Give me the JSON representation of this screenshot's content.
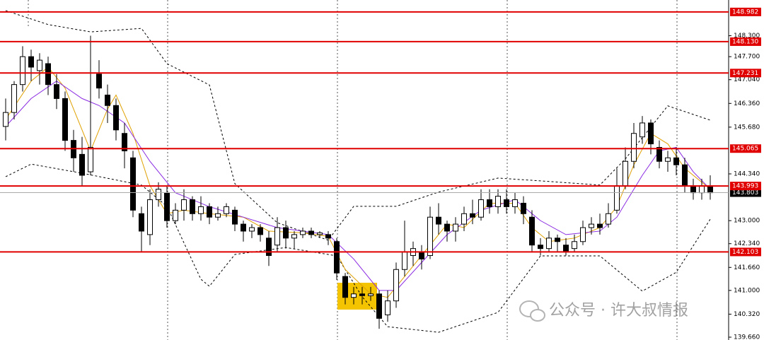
{
  "chart_data": {
    "type": "candlestick",
    "ylim": [
      139.579,
      149.324
    ],
    "yticks": [
      {
        "value": 139.66,
        "label": "139.660"
      },
      {
        "value": 140.32,
        "label": "140.320"
      },
      {
        "value": 141,
        "label": "141.000"
      },
      {
        "value": 141.66,
        "label": "141.660"
      },
      {
        "value": 142.34,
        "label": "142.340"
      },
      {
        "value": 143,
        "label": "143.000"
      },
      {
        "value": 144.34,
        "label": "144.340"
      },
      {
        "value": 145.68,
        "label": "145.680"
      },
      {
        "value": 146.36,
        "label": "146.360"
      },
      {
        "value": 147.04,
        "label": "147.040"
      },
      {
        "value": 147.7,
        "label": "147.700"
      },
      {
        "value": 148.3,
        "label": "148.300"
      }
    ],
    "levels": [
      148.982,
      {
        "value": 148.13,
        "label": "148.130"
      },
      147.231,
      145.065,
      143.993,
      142.103
    ],
    "level_color": "#e00000",
    "last_price": 143.803,
    "ohlc": [
      [
        145.7,
        146.5,
        145.3,
        146.1
      ],
      [
        146.1,
        147.0,
        145.9,
        146.9
      ],
      [
        146.9,
        148.0,
        146.7,
        147.7
      ],
      [
        147.7,
        147.9,
        147.0,
        147.4
      ],
      [
        147.3,
        147.8,
        146.9,
        147.6
      ],
      [
        147.5,
        147.7,
        146.6,
        146.9
      ],
      [
        146.9,
        147.2,
        146.2,
        146.5
      ],
      [
        146.5,
        146.7,
        145.0,
        145.3
      ],
      [
        145.3,
        145.6,
        144.4,
        144.8
      ],
      [
        144.9,
        145.4,
        144.0,
        144.3
      ],
      [
        144.4,
        148.3,
        144.3,
        145.1
      ],
      [
        147.2,
        147.6,
        146.5,
        146.8
      ],
      [
        146.6,
        146.9,
        145.8,
        146.3
      ],
      [
        146.3,
        146.5,
        145.3,
        145.6
      ],
      [
        145.5,
        145.8,
        144.5,
        145.0
      ],
      [
        144.8,
        145.0,
        143.1,
        143.3
      ],
      [
        143.2,
        143.4,
        142.1,
        142.7
      ],
      [
        142.6,
        143.9,
        142.3,
        143.6
      ],
      [
        143.6,
        144.1,
        143.4,
        143.9
      ],
      [
        143.8,
        144.0,
        142.8,
        143.0
      ],
      [
        143.0,
        143.5,
        142.9,
        143.3
      ],
      [
        143.3,
        143.9,
        143.0,
        143.6
      ],
      [
        143.6,
        143.7,
        143.0,
        143.2
      ],
      [
        143.2,
        143.7,
        143.0,
        143.4
      ],
      [
        143.4,
        143.5,
        142.9,
        143.1
      ],
      [
        143.1,
        143.4,
        143.0,
        143.2
      ],
      [
        143.2,
        143.5,
        143.1,
        143.4
      ],
      [
        143.3,
        143.4,
        142.7,
        142.9
      ],
      [
        142.9,
        143.0,
        142.4,
        142.7
      ],
      [
        142.7,
        142.9,
        142.5,
        142.8
      ],
      [
        142.8,
        142.9,
        142.4,
        142.6
      ],
      [
        142.5,
        142.7,
        141.7,
        142.0
      ],
      [
        142.3,
        143.1,
        142.1,
        142.8
      ],
      [
        142.8,
        143.0,
        142.2,
        142.5
      ],
      [
        142.5,
        142.7,
        142.2,
        142.6
      ],
      [
        142.6,
        142.8,
        142.5,
        142.7
      ],
      [
        142.7,
        142.8,
        142.5,
        142.6
      ],
      [
        142.6,
        142.7,
        142.5,
        142.65
      ],
      [
        142.6,
        142.7,
        142.3,
        142.5
      ],
      [
        142.4,
        142.5,
        141.3,
        141.5
      ],
      [
        141.4,
        141.5,
        140.6,
        140.8
      ],
      [
        140.8,
        141.1,
        140.6,
        140.9
      ],
      [
        140.9,
        141.1,
        140.6,
        140.85
      ],
      [
        140.85,
        141.1,
        140.7,
        140.9
      ],
      [
        140.9,
        141.0,
        139.9,
        140.2
      ],
      [
        140.3,
        141.0,
        140.1,
        140.7
      ],
      [
        140.7,
        141.8,
        140.5,
        141.6
      ],
      [
        141.6,
        143.0,
        141.4,
        142.1
      ],
      [
        142.0,
        142.4,
        141.7,
        142.2
      ],
      [
        142.1,
        142.3,
        141.6,
        141.9
      ],
      [
        142.0,
        143.4,
        141.9,
        143.1
      ],
      [
        143.1,
        143.5,
        142.6,
        142.9
      ],
      [
        142.9,
        143.0,
        142.4,
        142.7
      ],
      [
        142.7,
        143.1,
        142.4,
        142.9
      ],
      [
        142.9,
        143.4,
        142.7,
        143.2
      ],
      [
        143.2,
        143.6,
        142.9,
        143.1
      ],
      [
        143.1,
        143.9,
        143.0,
        143.6
      ],
      [
        143.6,
        143.9,
        143.2,
        143.4
      ],
      [
        143.4,
        143.9,
        143.2,
        143.7
      ],
      [
        143.6,
        143.9,
        143.2,
        143.4
      ],
      [
        143.4,
        143.8,
        143.2,
        143.6
      ],
      [
        143.5,
        143.7,
        142.9,
        143.2
      ],
      [
        143.1,
        143.3,
        142.1,
        142.3
      ],
      [
        142.3,
        142.5,
        142.0,
        142.2
      ],
      [
        142.2,
        142.7,
        142.1,
        142.5
      ],
      [
        142.5,
        142.6,
        142.1,
        142.4
      ],
      [
        142.3,
        142.5,
        142.0,
        142.1
      ],
      [
        142.2,
        142.6,
        142.1,
        142.4
      ],
      [
        142.4,
        143.0,
        142.3,
        142.8
      ],
      [
        142.8,
        143.1,
        142.6,
        142.9
      ],
      [
        142.9,
        143.2,
        142.6,
        142.8
      ],
      [
        142.9,
        143.5,
        142.8,
        143.2
      ],
      [
        143.3,
        144.5,
        143.2,
        144.0
      ],
      [
        144.0,
        145.1,
        143.9,
        144.7
      ],
      [
        144.7,
        145.8,
        144.5,
        145.5
      ],
      [
        145.4,
        146.0,
        145.2,
        145.8
      ],
      [
        145.8,
        145.9,
        144.9,
        145.2
      ],
      [
        145.1,
        145.3,
        144.5,
        144.7
      ],
      [
        144.7,
        145.0,
        144.4,
        144.8
      ],
      [
        144.8,
        145.1,
        144.3,
        144.6
      ],
      [
        144.6,
        144.8,
        143.8,
        144.0
      ],
      [
        144.0,
        144.2,
        143.6,
        143.8
      ],
      [
        143.8,
        144.2,
        143.6,
        144.0
      ],
      [
        144.0,
        144.3,
        143.6,
        143.8
      ]
    ],
    "lines": [
      {
        "color": "#000000",
        "dash": true,
        "x": [
          0,
          5,
          10,
          16,
          19,
          24,
          27,
          32,
          38,
          41,
          46,
          51,
          58,
          63,
          70,
          73,
          78,
          83
        ],
        "values": [
          149.02,
          148.62,
          148.41,
          148.51,
          147.5,
          146.89,
          144.06,
          142.94,
          142.44,
          143.41,
          143.41,
          143.82,
          144.22,
          144.14,
          144.02,
          144.77,
          146.29,
          145.88
        ]
      },
      {
        "color": "#000000",
        "dash": true,
        "x": [
          0,
          3,
          9,
          16,
          19,
          23,
          24,
          27,
          33,
          39,
          42,
          45,
          51,
          58,
          63,
          70,
          75,
          79,
          83
        ],
        "values": [
          144.26,
          144.62,
          144.36,
          144.02,
          143.41,
          141.32,
          141.12,
          142.03,
          142.23,
          141.99,
          140.82,
          139.96,
          139.8,
          140.37,
          141.99,
          141.99,
          140.98,
          141.52,
          143.04
        ]
      },
      {
        "color": "#e0a000",
        "dash": false,
        "x": [
          0,
          3,
          5,
          7,
          9,
          10,
          12,
          13,
          15,
          17,
          19,
          21,
          24,
          28,
          31,
          35,
          38,
          40,
          43,
          45,
          47,
          50,
          52,
          54,
          57,
          60,
          62,
          64,
          67,
          70,
          72,
          74,
          76,
          78,
          80,
          83
        ],
        "values": [
          145.9,
          147.0,
          147.4,
          146.8,
          145.6,
          145.0,
          146.2,
          146.6,
          145.5,
          144.0,
          143.2,
          143.3,
          143.2,
          143.1,
          142.7,
          142.65,
          142.55,
          141.6,
          140.9,
          140.8,
          141.4,
          142.3,
          142.9,
          142.8,
          143.5,
          143.5,
          142.8,
          142.4,
          142.5,
          142.8,
          143.4,
          144.6,
          145.5,
          145.2,
          144.5,
          143.9
        ]
      },
      {
        "color": "#8a2be2",
        "dash": false,
        "x": [
          0,
          3,
          6,
          9,
          11,
          14,
          17,
          20,
          24,
          28,
          32,
          38,
          41,
          44,
          46,
          49,
          52,
          56,
          60,
          63,
          66,
          70,
          72,
          75,
          77,
          79,
          81,
          83
        ],
        "values": [
          145.7,
          146.5,
          147.0,
          146.5,
          146.3,
          145.8,
          144.7,
          143.8,
          143.4,
          143.1,
          142.8,
          142.6,
          141.9,
          141.0,
          141.0,
          141.8,
          142.6,
          143.3,
          143.6,
          143.0,
          142.6,
          142.7,
          143.1,
          144.3,
          145.0,
          145.1,
          144.4,
          143.9
        ]
      }
    ],
    "watermark": "公众号 · 许大叔情报"
  }
}
